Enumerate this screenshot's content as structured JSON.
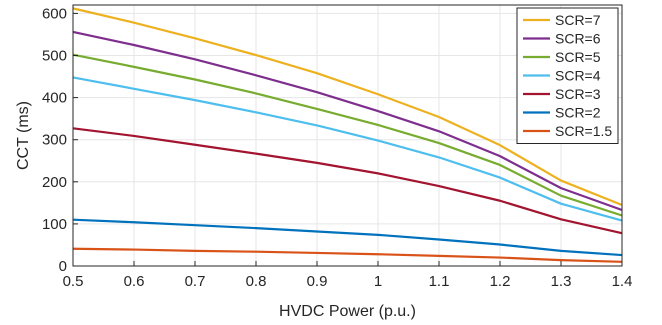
{
  "chart_data": {
    "type": "line",
    "title": "",
    "xlabel": "HVDC Power (p.u.)",
    "ylabel": "CCT (ms)",
    "xlim": [
      0.5,
      1.4
    ],
    "ylim": [
      0,
      620
    ],
    "xticks": [
      "0.5",
      "0.6",
      "0.7",
      "0.8",
      "0.9",
      "1",
      "1.1",
      "1.2",
      "1.3",
      "1.4"
    ],
    "yticks": [
      "0",
      "100",
      "200",
      "300",
      "400",
      "500",
      "600"
    ],
    "grid": true,
    "legend_position": "top-right",
    "x": [
      0.5,
      0.6,
      0.7,
      0.8,
      0.9,
      1.0,
      1.1,
      1.2,
      1.3,
      1.4
    ],
    "series": [
      {
        "name": "SCR=7",
        "color": "#EDB120",
        "values": [
          612,
          578,
          541,
          501,
          458,
          408,
          354,
          287,
          203,
          145
        ]
      },
      {
        "name": "SCR=6",
        "color": "#7E2F8E",
        "values": [
          556,
          525,
          491,
          453,
          413,
          368,
          320,
          261,
          185,
          133
        ]
      },
      {
        "name": "SCR=5",
        "color": "#77AC30",
        "values": [
          502,
          473,
          443,
          410,
          373,
          335,
          292,
          240,
          167,
          120
        ]
      },
      {
        "name": "SCR=4",
        "color": "#4DBEEE",
        "values": [
          448,
          421,
          394,
          365,
          334,
          298,
          258,
          210,
          148,
          108
        ]
      },
      {
        "name": "SCR=3",
        "color": "#A2142F",
        "values": [
          327,
          309,
          288,
          267,
          245,
          220,
          190,
          155,
          111,
          78
        ]
      },
      {
        "name": "SCR=2",
        "color": "#0072BD",
        "values": [
          110,
          104,
          97,
          90,
          82,
          74,
          63,
          51,
          36,
          26
        ]
      },
      {
        "name": "SCR=1.5",
        "color": "#D95319",
        "values": [
          41,
          39,
          36,
          34,
          31,
          28,
          24,
          20,
          14,
          10
        ]
      }
    ]
  }
}
